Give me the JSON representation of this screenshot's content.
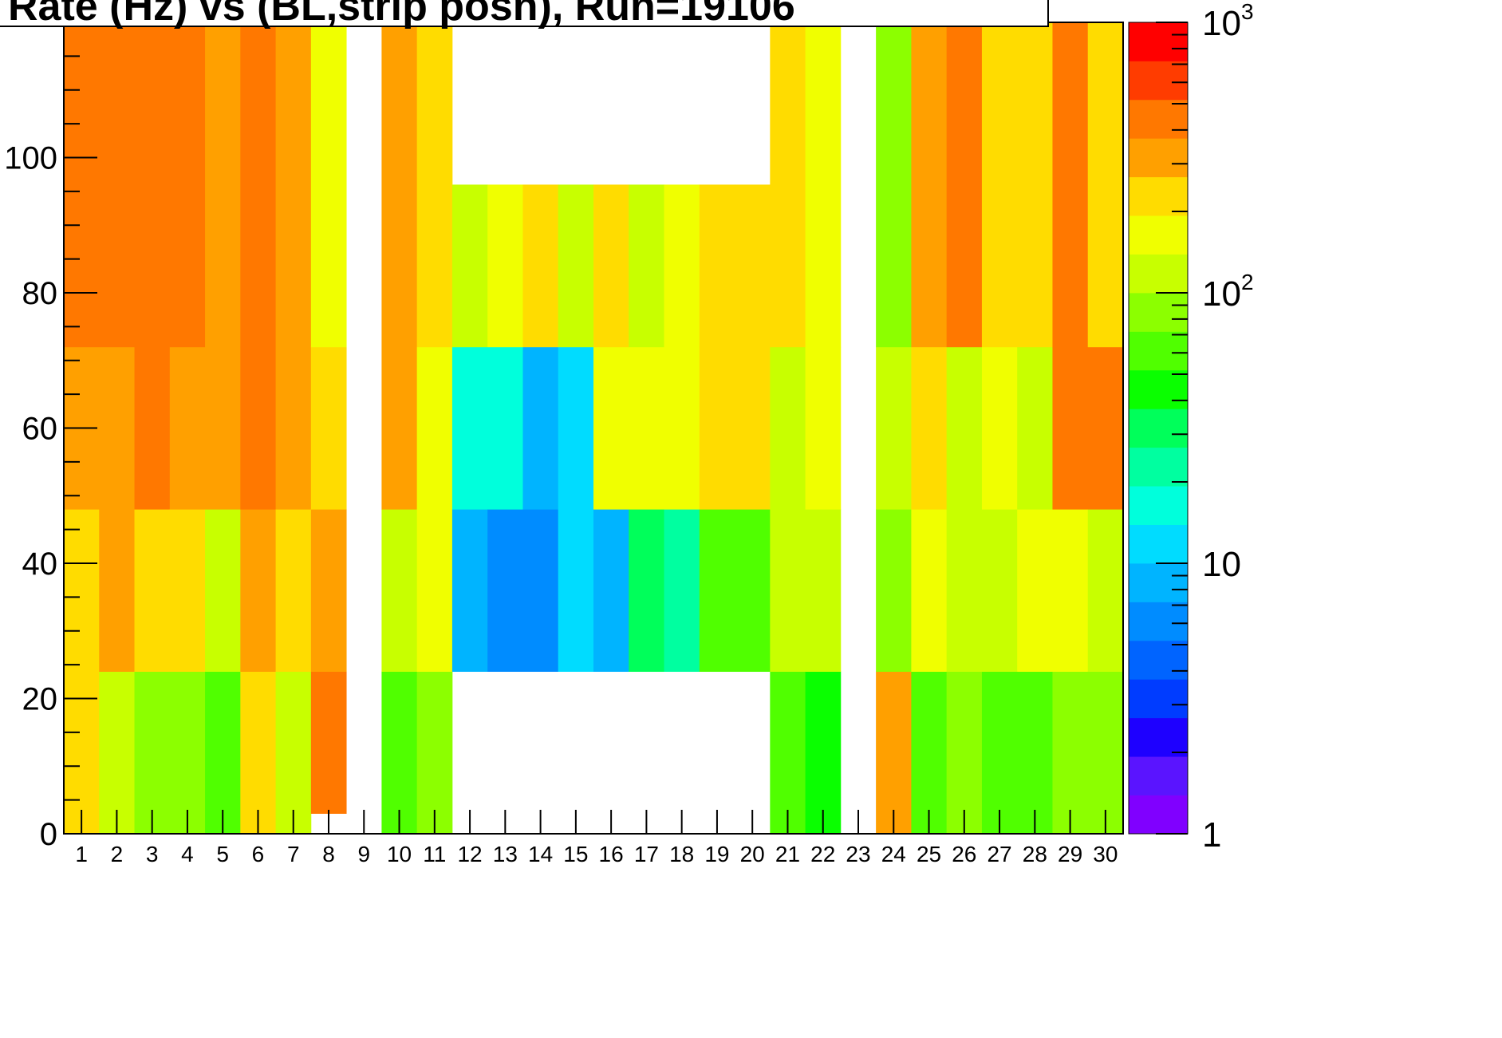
{
  "title": "Rate (Hz) vs (BL,strip posn), Run=19106",
  "chart_data": {
    "type": "heatmap",
    "title": "Rate (Hz) vs (BL,strip posn), Run=19106",
    "xlabel": "",
    "ylabel": "",
    "x_tick_labels": [
      "1",
      "2",
      "3",
      "4",
      "5",
      "6",
      "7",
      "8",
      "9",
      "10",
      "11",
      "12",
      "13",
      "14",
      "15",
      "16",
      "17",
      "18",
      "19",
      "20",
      "21",
      "22",
      "23",
      "24",
      "25",
      "26",
      "27",
      "28",
      "29",
      "30"
    ],
    "y_tick_labels": [
      "0",
      "20",
      "40",
      "60",
      "80",
      "100"
    ],
    "y_range": [
      0,
      120
    ],
    "z_scale": "log",
    "z_range": [
      1,
      1000
    ],
    "colorbar_tick_labels": [
      {
        "base": "1",
        "exp": ""
      },
      {
        "base": "10",
        "exp": ""
      },
      {
        "base": "10",
        "exp": "2"
      },
      {
        "base": "10",
        "exp": "3"
      }
    ],
    "palette": [
      "#8000ff",
      "#5a14ff",
      "#1e00ff",
      "#003cff",
      "#0064ff",
      "#008cff",
      "#00b4ff",
      "#00dcff",
      "#00ffdc",
      "#00ffa0",
      "#00ff5a",
      "#0aff00",
      "#50ff00",
      "#8cff00",
      "#c8ff00",
      "#f0ff00",
      "#ffdc00",
      "#ffa000",
      "#ff7800",
      "#ff3c00",
      "#ff0000"
    ],
    "columns": [
      {
        "bl": "1",
        "bands": [
          [
            0,
            48,
            230
          ],
          [
            48,
            72,
            300
          ],
          [
            72,
            120,
            450
          ]
        ]
      },
      {
        "bl": "2",
        "bands": [
          [
            0,
            24,
            110
          ],
          [
            24,
            48,
            280
          ],
          [
            48,
            72,
            290
          ],
          [
            72,
            120,
            420
          ]
        ]
      },
      {
        "bl": "3",
        "bands": [
          [
            0,
            24,
            75
          ],
          [
            24,
            48,
            200
          ],
          [
            48,
            72,
            380
          ],
          [
            72,
            120,
            450
          ]
        ]
      },
      {
        "bl": "4",
        "bands": [
          [
            0,
            24,
            75
          ],
          [
            24,
            48,
            230
          ],
          [
            48,
            72,
            330
          ],
          [
            72,
            120,
            450
          ]
        ]
      },
      {
        "bl": "5",
        "bands": [
          [
            0,
            24,
            60
          ],
          [
            24,
            48,
            105
          ],
          [
            48,
            120,
            280
          ]
        ]
      },
      {
        "bl": "6",
        "bands": [
          [
            0,
            24,
            220
          ],
          [
            24,
            48,
            300
          ],
          [
            48,
            72,
            420
          ],
          [
            72,
            120,
            400
          ]
        ]
      },
      {
        "bl": "7",
        "bands": [
          [
            0,
            24,
            120
          ],
          [
            24,
            48,
            230
          ],
          [
            48,
            72,
            280
          ],
          [
            72,
            120,
            330
          ]
        ]
      },
      {
        "bl": "8",
        "bands": [
          [
            3,
            24,
            420
          ],
          [
            24,
            48,
            270
          ],
          [
            48,
            72,
            200
          ],
          [
            72,
            120,
            145
          ]
        ]
      },
      {
        "bl": "9",
        "bands": []
      },
      {
        "bl": "10",
        "bands": [
          [
            0,
            24,
            60
          ],
          [
            24,
            48,
            130
          ],
          [
            48,
            120,
            270
          ]
        ]
      },
      {
        "bl": "11",
        "bands": [
          [
            0,
            24,
            80
          ],
          [
            24,
            48,
            170
          ],
          [
            48,
            72,
            180
          ],
          [
            72,
            120,
            240
          ]
        ]
      },
      {
        "bl": "12",
        "bands": [
          [
            24,
            48,
            9
          ],
          [
            48,
            72,
            15
          ],
          [
            72,
            96,
            110
          ]
        ]
      },
      {
        "bl": "13",
        "bands": [
          [
            24,
            48,
            6
          ],
          [
            48,
            72,
            18
          ],
          [
            72,
            96,
            160
          ]
        ]
      },
      {
        "bl": "14",
        "bands": [
          [
            24,
            48,
            6
          ],
          [
            48,
            72,
            8
          ],
          [
            72,
            96,
            210
          ]
        ]
      },
      {
        "bl": "15",
        "bands": [
          [
            24,
            48,
            13
          ],
          [
            48,
            72,
            12
          ],
          [
            72,
            96,
            110
          ]
        ]
      },
      {
        "bl": "16",
        "bands": [
          [
            24,
            48,
            8
          ],
          [
            48,
            72,
            150
          ],
          [
            72,
            96,
            250
          ]
        ]
      },
      {
        "bl": "17",
        "bands": [
          [
            24,
            48,
            35
          ],
          [
            48,
            72,
            140
          ],
          [
            72,
            96,
            130
          ]
        ]
      },
      {
        "bl": "18",
        "bands": [
          [
            24,
            48,
            20
          ],
          [
            48,
            72,
            180
          ],
          [
            72,
            96,
            160
          ]
        ]
      },
      {
        "bl": "19",
        "bands": [
          [
            24,
            48,
            55
          ],
          [
            48,
            72,
            200
          ],
          [
            72,
            96,
            200
          ]
        ]
      },
      {
        "bl": "20",
        "bands": [
          [
            24,
            48,
            55
          ],
          [
            48,
            72,
            230
          ],
          [
            72,
            96,
            230
          ]
        ]
      },
      {
        "bl": "21",
        "bands": [
          [
            0,
            24,
            55
          ],
          [
            24,
            48,
            100
          ],
          [
            48,
            72,
            120
          ],
          [
            72,
            120,
            240
          ]
        ]
      },
      {
        "bl": "22",
        "bands": [
          [
            0,
            24,
            50
          ],
          [
            24,
            48,
            130
          ],
          [
            48,
            72,
            160
          ],
          [
            72,
            120,
            190
          ]
        ]
      },
      {
        "bl": "23",
        "bands": []
      },
      {
        "bl": "24",
        "bands": [
          [
            0,
            24,
            280
          ],
          [
            24,
            48,
            90
          ],
          [
            48,
            72,
            100
          ],
          [
            72,
            120,
            90
          ]
        ]
      },
      {
        "bl": "25",
        "bands": [
          [
            0,
            24,
            65
          ],
          [
            24,
            48,
            180
          ],
          [
            48,
            72,
            200
          ],
          [
            72,
            120,
            350
          ]
        ]
      },
      {
        "bl": "26",
        "bands": [
          [
            0,
            24,
            75
          ],
          [
            24,
            48,
            100
          ],
          [
            48,
            72,
            120
          ],
          [
            72,
            120,
            400
          ]
        ]
      },
      {
        "bl": "27",
        "bands": [
          [
            0,
            24,
            60
          ],
          [
            24,
            48,
            100
          ],
          [
            48,
            72,
            160
          ],
          [
            72,
            120,
            260
          ]
        ]
      },
      {
        "bl": "28",
        "bands": [
          [
            0,
            24,
            65
          ],
          [
            24,
            48,
            150
          ],
          [
            48,
            72,
            120
          ],
          [
            72,
            120,
            200
          ]
        ]
      },
      {
        "bl": "29",
        "bands": [
          [
            0,
            24,
            85
          ],
          [
            24,
            48,
            150
          ],
          [
            48,
            72,
            380
          ],
          [
            72,
            120,
            420
          ]
        ]
      },
      {
        "bl": "30",
        "bands": [
          [
            0,
            24,
            80
          ],
          [
            24,
            48,
            120
          ],
          [
            48,
            72,
            380
          ],
          [
            72,
            120,
            220
          ]
        ]
      }
    ]
  }
}
